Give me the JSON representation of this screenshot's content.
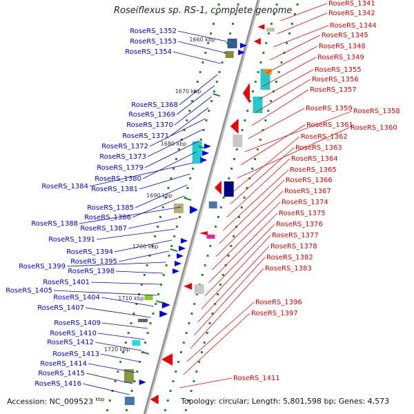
{
  "title": "Roseiflexus sp. RS-1, complete genome",
  "footer": {
    "accession": "Accession: NC_009523",
    "kbp_unit": "kbp",
    "summary": "Topology: circular; Length: 5,801,598 bp; Genes: 4,573"
  },
  "colors": {
    "forward_label": "#0000cc",
    "reverse_label": "#e00000",
    "backbone": "#999999",
    "tick": "#228b22"
  },
  "ticks": [
    "1660 kbp",
    "1670 kbp",
    "1680 kbp",
    "1690 kbp",
    "1700 kbp",
    "1710 kbp",
    "1720 kbp"
  ],
  "forward_genes": [
    "RoseRS_1352",
    "RoseRS_1353",
    "RoseRS_1354",
    "RoseRS_1368",
    "RoseRS_1369",
    "RoseRS_1370",
    "RoseRS_1371",
    "RoseRS_1372",
    "RoseRS_1373",
    "RoseRS_1379",
    "RoseRS_1380",
    "RoseRS_1384",
    "RoseRS_1381",
    "RoseRS_1385",
    "RoseRS_1386",
    "RoseRS_1388",
    "RoseRS_1387",
    "RoseRS_1391",
    "RoseRS_1394",
    "RoseRS_1395",
    "RoseRS_1399",
    "RoseRS_1398",
    "RoseRS_1401",
    "RoseRS_1405",
    "RoseRS_1404",
    "RoseRS_1407",
    "RoseRS_1409",
    "RoseRS_1410",
    "RoseRS_1412",
    "RoseRS_1413",
    "RoseRS_1414",
    "RoseRS_1415",
    "RoseRS_1416"
  ],
  "reverse_genes": [
    "RoseRS_1341",
    "RoseRS_1342",
    "RoseRS_1344",
    "RoseRS_1345",
    "RoseRS_1348",
    "RoseRS_1349",
    "RoseRS_1355",
    "RoseRS_1356",
    "RoseRS_1357",
    "RoseRS_1359",
    "RoseRS_1358",
    "RoseRS_1361",
    "RoseRS_1360",
    "RoseRS_1362",
    "RoseRS_1363",
    "RoseRS_1364",
    "RoseRS_1365",
    "RoseRS_1366",
    "RoseRS_1367",
    "RoseRS_1374",
    "RoseRS_1375",
    "RoseRS_1376",
    "RoseRS_1377",
    "RoseRS_1378",
    "RoseRS_1382",
    "RoseRS_1383",
    "RoseRS_1396",
    "RoseRS_1397",
    "RoseRS_1411"
  ]
}
